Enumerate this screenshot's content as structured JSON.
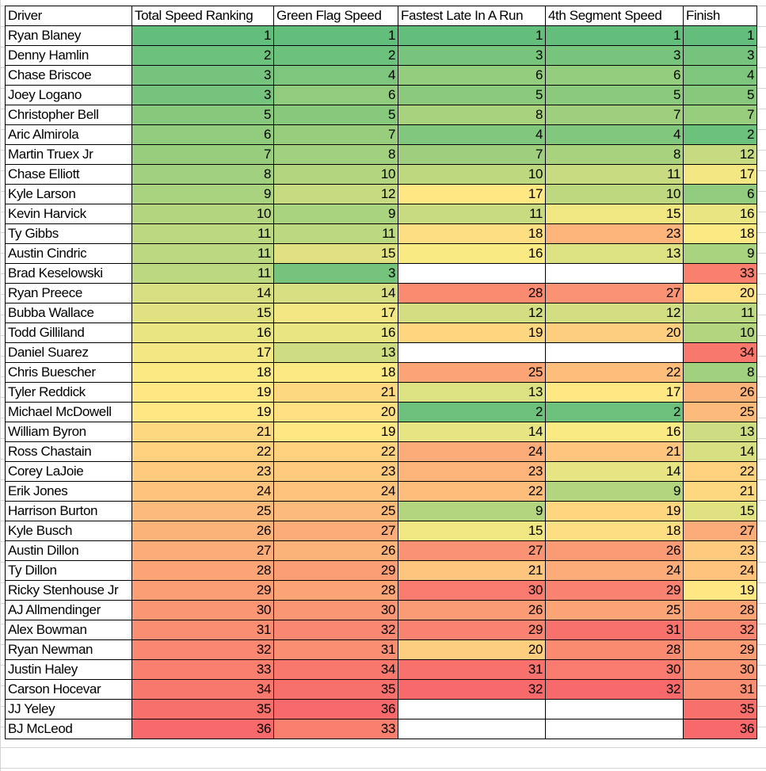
{
  "headers": [
    "Driver",
    "Total Speed Ranking",
    "Green Flag Speed",
    "Fastest Late In A Run",
    "4th Segment Speed",
    "Finish"
  ],
  "scale_colors": {
    "low": "#63BE7B",
    "mid": "#FFEB84",
    "high": "#F8696B"
  },
  "rows": [
    [
      "Ryan Blaney",
      1,
      1,
      1,
      1,
      1
    ],
    [
      "Denny Hamlin",
      2,
      2,
      3,
      3,
      3
    ],
    [
      "Chase Briscoe",
      3,
      4,
      6,
      6,
      4
    ],
    [
      "Joey Logano",
      3,
      6,
      5,
      5,
      5
    ],
    [
      "Christopher Bell",
      5,
      5,
      8,
      7,
      7
    ],
    [
      "Aric Almirola",
      6,
      7,
      4,
      4,
      2
    ],
    [
      "Martin Truex Jr",
      7,
      8,
      7,
      8,
      12
    ],
    [
      "Chase Elliott",
      8,
      10,
      10,
      11,
      17
    ],
    [
      "Kyle Larson",
      9,
      12,
      17,
      10,
      6
    ],
    [
      "Kevin Harvick",
      10,
      9,
      11,
      15,
      16
    ],
    [
      "Ty Gibbs",
      11,
      11,
      18,
      23,
      18
    ],
    [
      "Austin Cindric",
      11,
      15,
      16,
      13,
      9
    ],
    [
      "Brad Keselowski",
      11,
      3,
      "",
      "",
      33
    ],
    [
      "Ryan Preece",
      14,
      14,
      28,
      27,
      20
    ],
    [
      "Bubba Wallace",
      15,
      17,
      12,
      12,
      11
    ],
    [
      "Todd Gilliland",
      16,
      16,
      19,
      20,
      10
    ],
    [
      "Daniel Suarez",
      17,
      13,
      "",
      "",
      34
    ],
    [
      "Chris Buescher",
      18,
      18,
      25,
      22,
      8
    ],
    [
      "Tyler Reddick",
      19,
      21,
      13,
      17,
      26
    ],
    [
      "Michael McDowell",
      19,
      20,
      2,
      2,
      25
    ],
    [
      "William Byron",
      21,
      19,
      14,
      16,
      13
    ],
    [
      "Ross Chastain",
      22,
      22,
      24,
      21,
      14
    ],
    [
      "Corey LaJoie",
      23,
      23,
      23,
      14,
      22
    ],
    [
      "Erik Jones",
      24,
      24,
      22,
      9,
      21
    ],
    [
      "Harrison Burton",
      25,
      25,
      9,
      19,
      15
    ],
    [
      "Kyle Busch",
      26,
      27,
      15,
      18,
      27
    ],
    [
      "Austin Dillon",
      27,
      26,
      27,
      26,
      23
    ],
    [
      "Ty Dillon",
      28,
      29,
      21,
      24,
      24
    ],
    [
      "Ricky Stenhouse Jr",
      29,
      28,
      30,
      29,
      19
    ],
    [
      "AJ Allmendinger",
      30,
      30,
      26,
      25,
      28
    ],
    [
      "Alex Bowman",
      31,
      32,
      29,
      31,
      32
    ],
    [
      "Ryan Newman",
      32,
      31,
      20,
      28,
      29
    ],
    [
      "Justin Haley",
      33,
      34,
      31,
      30,
      30
    ],
    [
      "Carson Hocevar",
      34,
      35,
      32,
      32,
      31
    ],
    [
      "JJ Yeley",
      35,
      36,
      "",
      "",
      35
    ],
    [
      "BJ McLeod",
      36,
      33,
      "",
      "",
      36
    ]
  ]
}
